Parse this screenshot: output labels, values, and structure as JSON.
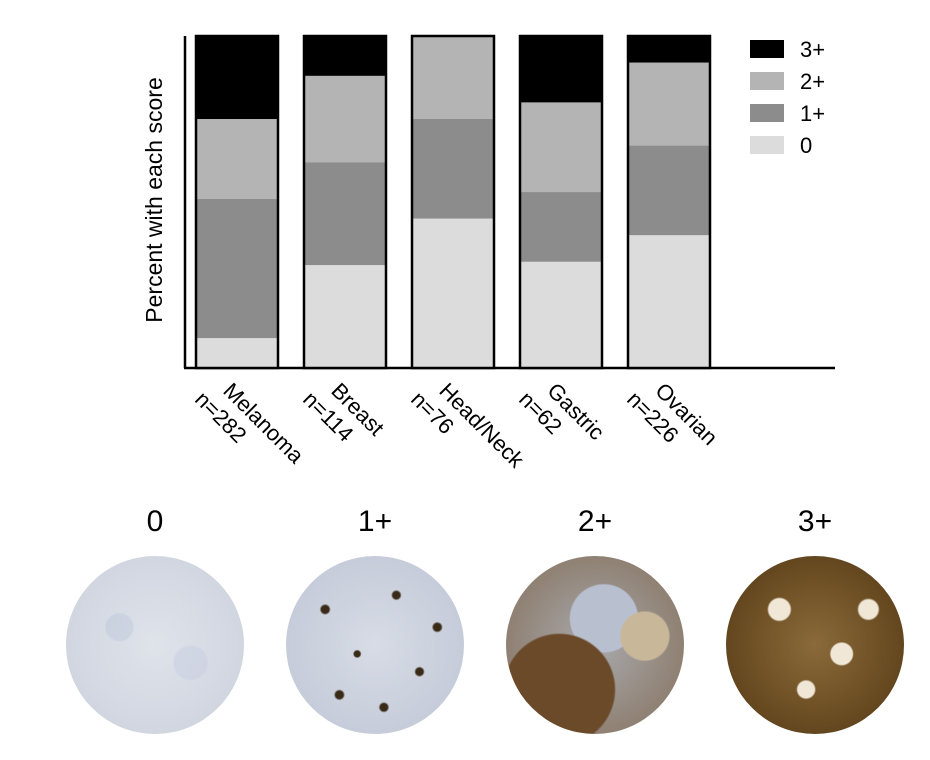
{
  "chart_data": {
    "type": "bar",
    "stacked": true,
    "percent": true,
    "title": "",
    "xlabel": "",
    "ylabel": "Percent with each score",
    "ylim": [
      0,
      100
    ],
    "categories": [
      {
        "name": "Melanoma",
        "n": "n=282"
      },
      {
        "name": "Breast",
        "n": "n=114"
      },
      {
        "name": "Head/Neck",
        "n": "n=76"
      },
      {
        "name": "Gastric",
        "n": "n=62"
      },
      {
        "name": "Ovarian",
        "n": "n=226"
      }
    ],
    "series": [
      {
        "name": "0",
        "color": "#dcdcdc",
        "values": [
          9,
          31,
          45,
          32,
          40
        ]
      },
      {
        "name": "1+",
        "color": "#8c8c8c",
        "values": [
          42,
          31,
          30,
          21,
          27
        ]
      },
      {
        "name": "2+",
        "color": "#b4b4b4",
        "values": [
          24,
          26,
          25,
          27,
          25
        ]
      },
      {
        "name": "3+",
        "color": "#000000",
        "values": [
          25,
          12,
          0,
          20,
          8
        ]
      }
    ],
    "legend": {
      "position": "right",
      "order": [
        "3+",
        "2+",
        "1+",
        "0"
      ]
    }
  },
  "cores": [
    {
      "label": "0"
    },
    {
      "label": "1+"
    },
    {
      "label": "2+"
    },
    {
      "label": "3+"
    }
  ]
}
